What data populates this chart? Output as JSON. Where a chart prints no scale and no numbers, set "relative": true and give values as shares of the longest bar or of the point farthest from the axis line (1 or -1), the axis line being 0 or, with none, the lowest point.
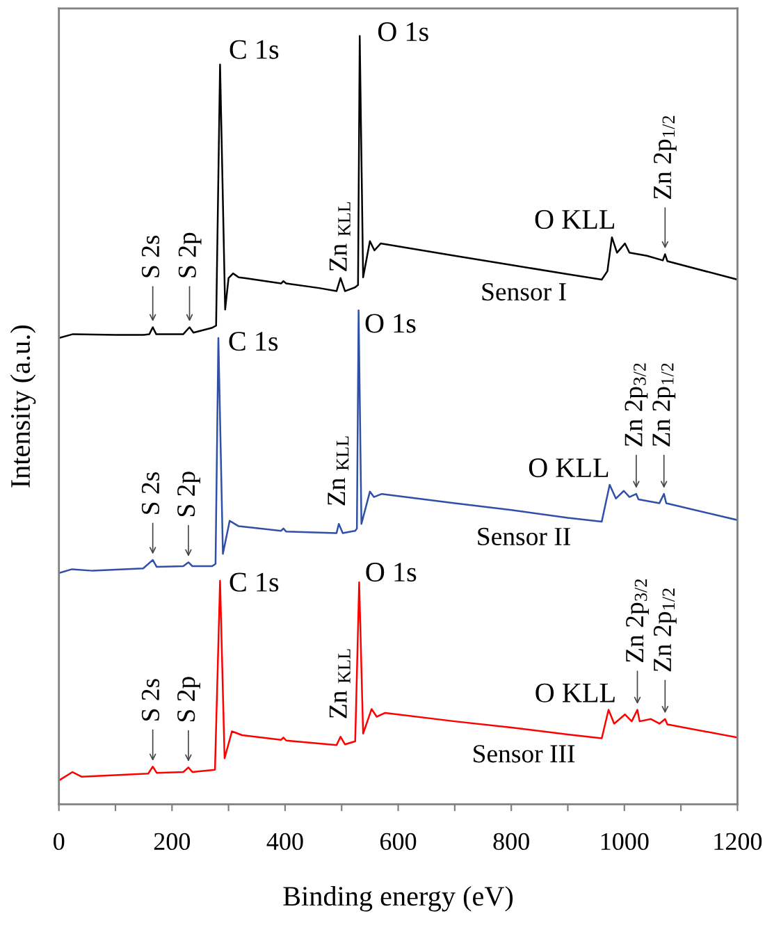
{
  "chart_data": {
    "type": "line",
    "xlabel": "Binding energy (eV)",
    "ylabel": "Intensity (a.u.)",
    "relative": true,
    "xlim": [
      0,
      1200
    ],
    "xticks": [
      0,
      {
        "value": 100,
        "label": null
      },
      200,
      {
        "value": 300,
        "label": null
      },
      400,
      {
        "value": 500,
        "label": null
      },
      600,
      {
        "value": 700,
        "label": null
      },
      800,
      {
        "value": 900,
        "label": null
      },
      1000,
      {
        "value": 1100,
        "label": null
      },
      1200
    ],
    "line_style": "solid",
    "series": [
      {
        "name": "Sensor I",
        "color": "#000000",
        "x": [
          0,
          25,
          100,
          150,
          160,
          166,
          172,
          220,
          231,
          238,
          270,
          278,
          285,
          294,
          300,
          308,
          318,
          328,
          393,
          397,
          402,
          460,
          491,
          498,
          506,
          524,
          529,
          532,
          538,
          550,
          558,
          569,
          700,
          800,
          900,
          960,
          970,
          978,
          987,
          1001,
          1009,
          1040,
          1068,
          1072,
          1076,
          1200
        ],
        "values": [
          0.607,
          0.612,
          0.611,
          0.611,
          0.612,
          0.621,
          0.612,
          0.612,
          0.621,
          0.614,
          0.62,
          0.623,
          0.963,
          0.644,
          0.685,
          0.691,
          0.686,
          0.685,
          0.678,
          0.681,
          0.678,
          0.672,
          0.668,
          0.685,
          0.668,
          0.673,
          0.676,
          1.0,
          0.686,
          0.733,
          0.721,
          0.73,
          0.714,
          0.702,
          0.69,
          0.683,
          0.694,
          0.738,
          0.718,
          0.73,
          0.718,
          0.714,
          0.708,
          0.716,
          0.707,
          0.683
        ]
      },
      {
        "name": "Sensor II",
        "color": "#2f4fa8",
        "x": [
          0,
          23,
          60,
          149,
          166,
          173,
          220,
          229,
          236,
          271,
          277,
          282,
          290,
          302,
          318,
          393,
          397,
          402,
          491,
          495,
          502,
          524,
          527,
          530,
          535,
          550,
          557,
          571,
          700,
          800,
          900,
          960,
          974,
          985,
          999,
          1009,
          1021,
          1025,
          1062,
          1070,
          1074,
          1200
        ],
        "values": [
          0.301,
          0.306,
          0.304,
          0.307,
          0.318,
          0.309,
          0.31,
          0.315,
          0.31,
          0.31,
          0.313,
          0.607,
          0.326,
          0.369,
          0.362,
          0.356,
          0.359,
          0.355,
          0.353,
          0.365,
          0.353,
          0.356,
          0.359,
          0.643,
          0.365,
          0.407,
          0.4,
          0.404,
          0.392,
          0.383,
          0.373,
          0.368,
          0.416,
          0.398,
          0.408,
          0.4,
          0.404,
          0.397,
          0.392,
          0.404,
          0.392,
          0.37
        ]
      },
      {
        "name": "Sensor III",
        "color": "#ff0000",
        "x": [
          0,
          24,
          40,
          158,
          166,
          173,
          220,
          229,
          236,
          276,
          285,
          293,
          306,
          324,
          393,
          397,
          402,
          491,
          498,
          506,
          524,
          531,
          538,
          553,
          562,
          577,
          700,
          800,
          900,
          960,
          972,
          982,
          1001,
          1013,
          1023,
          1027,
          1047,
          1062,
          1072,
          1076,
          1200
        ],
        "values": [
          0.031,
          0.042,
          0.036,
          0.04,
          0.049,
          0.041,
          0.042,
          0.048,
          0.042,
          0.045,
          0.291,
          0.06,
          0.095,
          0.09,
          0.084,
          0.087,
          0.083,
          0.077,
          0.088,
          0.078,
          0.082,
          0.289,
          0.092,
          0.124,
          0.114,
          0.119,
          0.108,
          0.1,
          0.091,
          0.086,
          0.123,
          0.105,
          0.117,
          0.108,
          0.123,
          0.108,
          0.111,
          0.105,
          0.111,
          0.104,
          0.087
        ]
      }
    ],
    "annotations": [
      {
        "text": "C 1s",
        "x": 285,
        "y": 0.963
      },
      {
        "text": "O 1s",
        "x": 532,
        "y": 1.0
      },
      {
        "text": "S 2s",
        "x": 166,
        "y": 0.621
      },
      {
        "text": "S 2p",
        "x": 231,
        "y": 0.621
      },
      {
        "text": "Zn $_{KLL}$",
        "x": 498,
        "y": 0.685
      },
      {
        "text": "O KLL",
        "x": 978,
        "y": 0.738
      },
      {
        "text": "Zn 2p$_{1/2}$",
        "x": 1072,
        "y": 0.716
      },
      {
        "text": "C 1s",
        "x": 282,
        "y": 0.607
      },
      {
        "text": "O 1s",
        "x": 530,
        "y": 0.643
      },
      {
        "text": "S 2s",
        "x": 166,
        "y": 0.318
      },
      {
        "text": "S 2p",
        "x": 229,
        "y": 0.315
      },
      {
        "text": "Zn $_{KLL}$",
        "x": 495,
        "y": 0.365
      },
      {
        "text": "O KLL",
        "x": 974,
        "y": 0.416
      },
      {
        "text": "Zn 2p$_{3/2}$",
        "x": 1021,
        "y": 0.404
      },
      {
        "text": "Zn 2p$_{1/2}$",
        "x": 1070,
        "y": 0.404
      },
      {
        "text": "C 1s",
        "x": 285,
        "y": 0.291
      },
      {
        "text": "O 1s",
        "x": 531,
        "y": 0.289
      },
      {
        "text": "S 2s",
        "x": 166,
        "y": 0.049
      },
      {
        "text": "S 2p",
        "x": 229,
        "y": 0.048
      },
      {
        "text": "Zn $_{KLL}$",
        "x": 498,
        "y": 0.088
      },
      {
        "text": "O KLL",
        "x": 972,
        "y": 0.123
      },
      {
        "text": "Zn 2p$_{3/2}$",
        "x": 1023,
        "y": 0.123
      },
      {
        "text": "Zn 2p$_{1/2}$",
        "x": 1072,
        "y": 0.111
      }
    ]
  }
}
